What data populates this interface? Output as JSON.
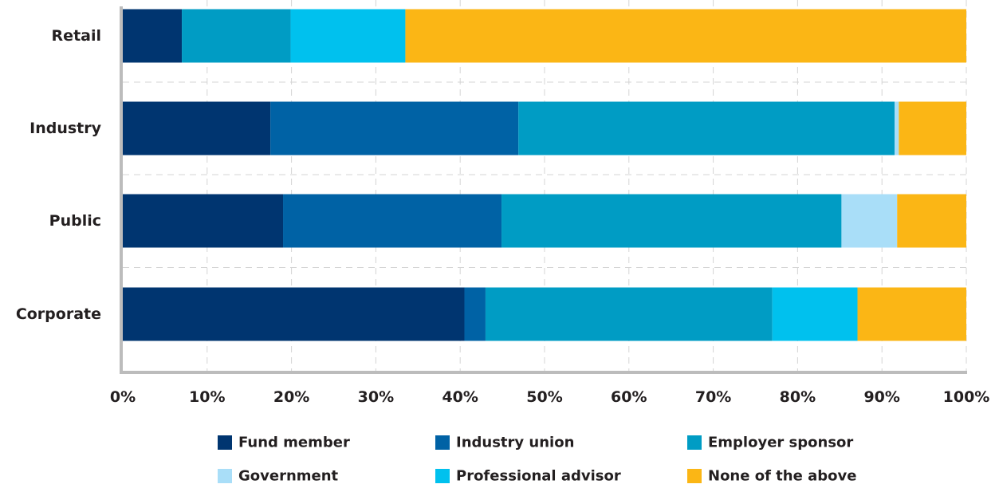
{
  "chart_data": {
    "type": "bar",
    "orientation": "horizontal",
    "stacked": true,
    "categories": [
      "Retail",
      "Industry",
      "Public",
      "Corporate"
    ],
    "series": [
      {
        "name": "Fund member",
        "color": "#003570",
        "values": [
          7,
          17.5,
          19,
          40.5
        ]
      },
      {
        "name": "Industry union",
        "color": "#0062a5",
        "values": [
          0,
          29.4,
          25.9,
          2.5
        ]
      },
      {
        "name": "Employer sponsor",
        "color": "#009cc4",
        "values": [
          12.9,
          44.6,
          40.3,
          34
        ]
      },
      {
        "name": "Government",
        "color": "#a9def8",
        "values": [
          0,
          0.5,
          6.6,
          0
        ]
      },
      {
        "name": "Professional advisor",
        "color": "#00c1ee",
        "values": [
          13.6,
          0,
          0,
          10.1
        ]
      },
      {
        "name": "None of the above",
        "color": "#fbb615",
        "values": [
          66.5,
          8,
          8.2,
          12.9
        ]
      }
    ],
    "xlim": [
      0,
      100
    ],
    "x_ticks": [
      "0%",
      "10%",
      "20%",
      "30%",
      "40%",
      "50%",
      "60%",
      "70%",
      "80%",
      "90%",
      "100%"
    ],
    "grid": true,
    "legend_position": "bottom"
  }
}
